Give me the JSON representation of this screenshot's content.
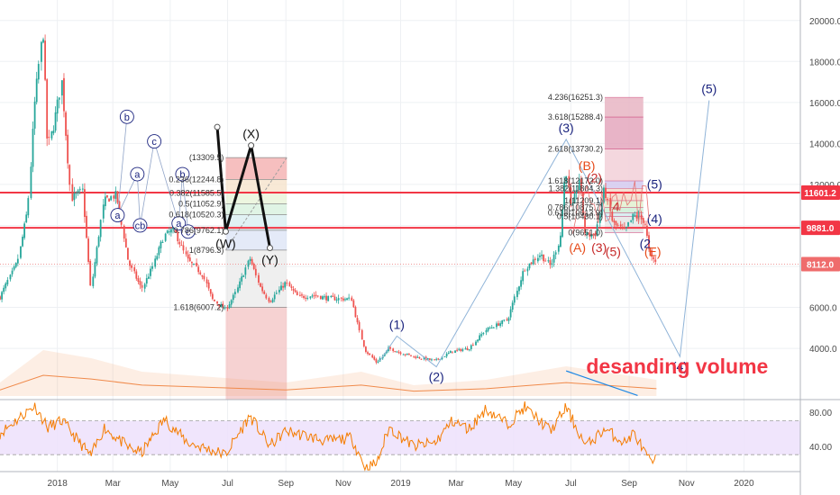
{
  "chart_data": {
    "type": "candlestick",
    "title": "",
    "x_axis": {
      "labels": [
        {
          "label": "2018",
          "date": "2018-01-01"
        },
        {
          "label": "Mar",
          "date": "2018-03-01"
        },
        {
          "label": "May",
          "date": "2018-05-01"
        },
        {
          "label": "Jul",
          "date": "2018-07-01"
        },
        {
          "label": "Sep",
          "date": "2018-09-01"
        },
        {
          "label": "Nov",
          "date": "2018-11-01"
        },
        {
          "label": "2019",
          "date": "2019-01-01"
        },
        {
          "label": "Mar",
          "date": "2019-03-01"
        },
        {
          "label": "May",
          "date": "2019-05-01"
        },
        {
          "label": "Jul",
          "date": "2019-07-01"
        },
        {
          "label": "Sep",
          "date": "2019-09-01"
        },
        {
          "label": "Nov",
          "date": "2019-11-01"
        },
        {
          "label": "2020",
          "date": "2020-01-01"
        }
      ],
      "range": [
        "2017-11-01",
        "2020-03-01"
      ]
    },
    "y_axis": {
      "labels": [
        "4000.0",
        "6000.0",
        "8000.0",
        "10000.0",
        "12000.0",
        "14000.0",
        "16000.0",
        "18000.0",
        "20000.0"
      ],
      "ticks": [
        4000,
        6000,
        8000,
        10000,
        12000,
        14000,
        16000,
        18000,
        20000
      ],
      "range": [
        1500,
        21000
      ]
    },
    "price_labels": [
      {
        "label": "11601.2",
        "value": 11601.2,
        "color": "#f23645"
      },
      {
        "label": "9881.0",
        "value": 9881.0,
        "color": "#f23645"
      },
      {
        "label": "8112.0",
        "value": 8112.0,
        "color": "#ef6c6c"
      }
    ],
    "horizontal_lines": [
      {
        "value": 11601.2,
        "color": "#f23645",
        "style": "solid"
      },
      {
        "value": 9881.0,
        "color": "#f23645",
        "style": "solid"
      },
      {
        "value": 8112.0,
        "color": "#ef9a9a",
        "style": "dotted"
      }
    ],
    "price_path": [
      {
        "date": "2017-11-01",
        "close": 6500
      },
      {
        "date": "2017-11-20",
        "close": 8200
      },
      {
        "date": "2017-12-01",
        "close": 10800
      },
      {
        "date": "2017-12-08",
        "close": 15800
      },
      {
        "date": "2017-12-17",
        "close": 19600
      },
      {
        "date": "2017-12-22",
        "close": 13800
      },
      {
        "date": "2017-12-28",
        "close": 14800
      },
      {
        "date": "2018-01-06",
        "close": 17000
      },
      {
        "date": "2018-01-16",
        "close": 11300
      },
      {
        "date": "2018-01-28",
        "close": 11700
      },
      {
        "date": "2018-02-06",
        "close": 6900
      },
      {
        "date": "2018-02-20",
        "close": 11200
      },
      {
        "date": "2018-03-05",
        "close": 11500
      },
      {
        "date": "2018-03-18",
        "close": 8200
      },
      {
        "date": "2018-04-01",
        "close": 6900
      },
      {
        "date": "2018-04-12",
        "close": 7900
      },
      {
        "date": "2018-04-25",
        "close": 9500
      },
      {
        "date": "2018-05-05",
        "close": 9800
      },
      {
        "date": "2018-05-20",
        "close": 8300
      },
      {
        "date": "2018-06-05",
        "close": 7600
      },
      {
        "date": "2018-06-15",
        "close": 6400
      },
      {
        "date": "2018-06-29",
        "close": 5900
      },
      {
        "date": "2018-07-10",
        "close": 6700
      },
      {
        "date": "2018-07-25",
        "close": 8400
      },
      {
        "date": "2018-08-05",
        "close": 7000
      },
      {
        "date": "2018-08-15",
        "close": 6300
      },
      {
        "date": "2018-09-01",
        "close": 7200
      },
      {
        "date": "2018-09-15",
        "close": 6500
      },
      {
        "date": "2018-10-01",
        "close": 6600
      },
      {
        "date": "2018-10-15",
        "close": 6450
      },
      {
        "date": "2018-11-10",
        "close": 6400
      },
      {
        "date": "2018-11-20",
        "close": 4600
      },
      {
        "date": "2018-11-25",
        "close": 3900
      },
      {
        "date": "2018-12-07",
        "close": 3300
      },
      {
        "date": "2018-12-20",
        "close": 4000
      },
      {
        "date": "2019-01-01",
        "close": 3800
      },
      {
        "date": "2019-01-15",
        "close": 3600
      },
      {
        "date": "2019-02-07",
        "close": 3400
      },
      {
        "date": "2019-02-25",
        "close": 3850
      },
      {
        "date": "2019-03-15",
        "close": 4000
      },
      {
        "date": "2019-04-02",
        "close": 4900
      },
      {
        "date": "2019-04-25",
        "close": 5400
      },
      {
        "date": "2019-05-13",
        "close": 7900
      },
      {
        "date": "2019-05-30",
        "close": 8600
      },
      {
        "date": "2019-06-10",
        "close": 8000
      },
      {
        "date": "2019-06-20",
        "close": 9400
      },
      {
        "date": "2019-06-26",
        "close": 12900
      },
      {
        "date": "2019-07-02",
        "close": 10600
      },
      {
        "date": "2019-07-10",
        "close": 12300
      },
      {
        "date": "2019-07-17",
        "close": 9500
      },
      {
        "date": "2019-07-28",
        "close": 9600
      },
      {
        "date": "2019-08-06",
        "close": 11800
      },
      {
        "date": "2019-08-15",
        "close": 10100
      },
      {
        "date": "2019-08-28",
        "close": 9700
      },
      {
        "date": "2019-09-06",
        "close": 10500
      },
      {
        "date": "2019-09-18",
        "close": 10200
      },
      {
        "date": "2019-09-24",
        "close": 8400
      },
      {
        "date": "2019-09-30",
        "close": 8200
      }
    ],
    "volume_series": {
      "name": "",
      "points": [
        {
          "date": "2017-11-01",
          "value": 0.25
        },
        {
          "date": "2017-12-17",
          "value": 0.85
        },
        {
          "date": "2018-02-06",
          "value": 0.7
        },
        {
          "date": "2018-04-01",
          "value": 0.45
        },
        {
          "date": "2018-06-15",
          "value": 0.35
        },
        {
          "date": "2018-09-01",
          "value": 0.25
        },
        {
          "date": "2018-11-20",
          "value": 0.45
        },
        {
          "date": "2019-01-15",
          "value": 0.2
        },
        {
          "date": "2019-04-02",
          "value": 0.3
        },
        {
          "date": "2019-06-26",
          "value": 0.55
        },
        {
          "date": "2019-09-30",
          "value": 0.3
        }
      ]
    },
    "rsi": {
      "y_labels": [
        "40.00",
        "80.00"
      ],
      "ticks": [
        40,
        80
      ],
      "range": [
        10,
        95
      ],
      "band": [
        30,
        70
      ],
      "points": [
        {
          "date": "2017-11-01",
          "value": 55
        },
        {
          "date": "2017-12-08",
          "value": 88
        },
        {
          "date": "2017-12-22",
          "value": 62
        },
        {
          "date": "2018-01-06",
          "value": 70
        },
        {
          "date": "2018-02-06",
          "value": 28
        },
        {
          "date": "2018-02-20",
          "value": 62
        },
        {
          "date": "2018-03-18",
          "value": 38
        },
        {
          "date": "2018-04-01",
          "value": 32
        },
        {
          "date": "2018-04-25",
          "value": 72
        },
        {
          "date": "2018-05-20",
          "value": 44
        },
        {
          "date": "2018-06-29",
          "value": 30
        },
        {
          "date": "2018-07-25",
          "value": 76
        },
        {
          "date": "2018-08-15",
          "value": 40
        },
        {
          "date": "2018-09-01",
          "value": 58
        },
        {
          "date": "2018-10-15",
          "value": 46
        },
        {
          "date": "2018-11-10",
          "value": 50
        },
        {
          "date": "2018-11-25",
          "value": 14
        },
        {
          "date": "2018-12-07",
          "value": 20
        },
        {
          "date": "2018-12-20",
          "value": 62
        },
        {
          "date": "2019-01-15",
          "value": 40
        },
        {
          "date": "2019-02-07",
          "value": 44
        },
        {
          "date": "2019-02-25",
          "value": 70
        },
        {
          "date": "2019-03-15",
          "value": 60
        },
        {
          "date": "2019-04-02",
          "value": 84
        },
        {
          "date": "2019-04-25",
          "value": 66
        },
        {
          "date": "2019-05-13",
          "value": 86
        },
        {
          "date": "2019-06-10",
          "value": 58
        },
        {
          "date": "2019-06-26",
          "value": 86
        },
        {
          "date": "2019-07-17",
          "value": 40
        },
        {
          "date": "2019-08-06",
          "value": 60
        },
        {
          "date": "2019-08-28",
          "value": 44
        },
        {
          "date": "2019-09-06",
          "value": 56
        },
        {
          "date": "2019-09-24",
          "value": 20
        },
        {
          "date": "2019-09-30",
          "value": 24
        }
      ]
    },
    "fibonacci_2018": {
      "levels": [
        {
          "label": "(13309.5)",
          "value": 13309.5
        },
        {
          "label": "0.236(12244.8)",
          "value": 12244.8
        },
        {
          "label": "0.382(11585.5)",
          "value": 11585.5
        },
        {
          "label": "0.5(11052.9)",
          "value": 11052.9
        },
        {
          "label": "0.618(10520.3)",
          "value": 10520.3
        },
        {
          "label": "0.786(9762.1)",
          "value": 9762.1
        },
        {
          "label": "1(8796.3)",
          "value": 8796.3
        },
        {
          "label": "1.618(6007.2)",
          "value": 6007.2
        }
      ]
    },
    "fibonacci_2019": {
      "levels": [
        {
          "label": "4.236(16251.3)",
          "value": 16251.3
        },
        {
          "label": "3.618(15288.4)",
          "value": 15288.4
        },
        {
          "label": "2.618(13730.2)",
          "value": 13730.2
        },
        {
          "label": "1.618(12172.0)",
          "value": 12172.0
        },
        {
          "label": "1.382(11804.3)",
          "value": 11804.3
        },
        {
          "label": "1(11209.1)",
          "value": 11209.1
        },
        {
          "label": "0.786(10875.7)",
          "value": 10875.7
        },
        {
          "label": "0.618(10613.9)",
          "value": 10613.9
        },
        {
          "label": "0.5(10430.1)",
          "value": 10430.1
        },
        {
          "label": "0(9651.0)",
          "value": 9651.0
        }
      ]
    },
    "wave_wxy": {
      "points": [
        {
          "label": "",
          "date": "2018-06-20",
          "value": 14800
        },
        {
          "label": "(W)",
          "date": "2018-06-29",
          "value": 9700
        },
        {
          "label": "(X)",
          "date": "2018-07-26",
          "value": 13900
        },
        {
          "label": "(Y)",
          "date": "2018-08-15",
          "value": 8900
        }
      ]
    },
    "wave_abc_2018": {
      "labels": [
        {
          "label": "b",
          "date": "2018-03-16",
          "value": 15300
        },
        {
          "label": "a",
          "date": "2018-03-06",
          "value": 10500
        },
        {
          "label": "a",
          "date": "2018-03-27",
          "value": 12500
        },
        {
          "label": "cb",
          "date": "2018-03-30",
          "value": 10000
        },
        {
          "label": "c",
          "date": "2018-04-14",
          "value": 14100
        },
        {
          "label": "a",
          "date": "2018-05-10",
          "value": 10100
        },
        {
          "label": "b",
          "date": "2018-05-14",
          "value": 12500
        },
        {
          "label": "c",
          "date": "2018-05-20",
          "value": 9700
        }
      ]
    },
    "wave_impulse": {
      "points": [
        {
          "label": "(1)",
          "date": "2018-12-28",
          "value": 4600
        },
        {
          "label": "(2)",
          "date": "2019-02-08",
          "value": 3100
        },
        {
          "label": "(3)",
          "date": "2019-06-26",
          "value": 14200
        },
        {
          "label": "(4)",
          "date": "2019-10-25",
          "value": 3600
        },
        {
          "label": "(5)",
          "date": "2019-11-25",
          "value": 16100
        }
      ]
    },
    "wave_labels_2019": [
      {
        "label": "(B)",
        "date": "2019-07-18",
        "value": 12700,
        "color": "#e64a19"
      },
      {
        "label": "(A)",
        "date": "2019-07-08",
        "value": 8700,
        "color": "#e64a19"
      },
      {
        "label": "(3)",
        "date": "2019-07-31",
        "value": 8700,
        "color": "#c62828"
      },
      {
        "label": "(5)",
        "date": "2019-08-15",
        "value": 8500,
        "color": "#c62828"
      },
      {
        "label": "(E)",
        "date": "2019-09-26",
        "value": 8500,
        "color": "#e64a19"
      },
      {
        "label": "(2",
        "date": "2019-09-18",
        "value": 8900,
        "color": "#1a237e"
      },
      {
        "label": "(4)",
        "date": "2019-09-28",
        "value": 10100,
        "color": "#1a237e"
      },
      {
        "label": "(5)",
        "date": "2019-09-28",
        "value": 11800,
        "color": "#1a237e"
      },
      {
        "label": "(2)",
        "date": "2019-07-26",
        "value": 12100,
        "color": "#c62828"
      },
      {
        "label": "4",
        "date": "2019-08-18",
        "value": 10700,
        "color": "#c62828"
      }
    ],
    "annotations": [
      {
        "text": "desanding volume",
        "date": "2019-07-01",
        "value": 2500,
        "color": "#f23645"
      }
    ],
    "grid": true,
    "legend": "none"
  }
}
